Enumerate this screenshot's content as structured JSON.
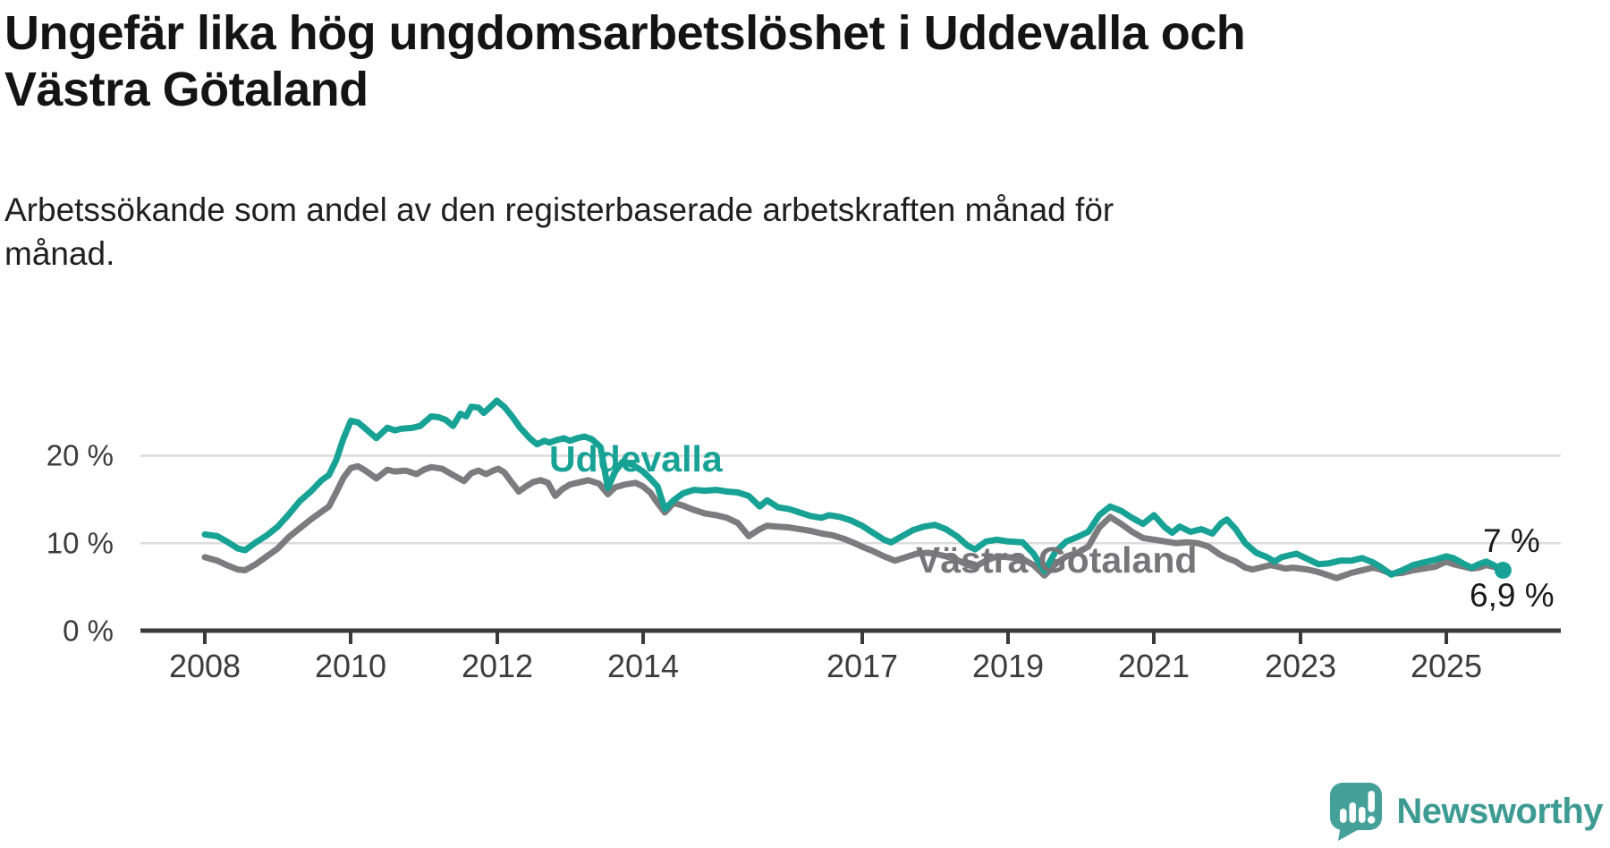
{
  "header": {
    "title_line1": "Ungefär lika hög ungdomsarbetslöshet i Uddevalla och",
    "title_line2": "Västra Götaland",
    "subtitle_line1": "Arbetssökande som andel av den registerbaserade arbetskraften månad för",
    "subtitle_line2": "månad."
  },
  "chart_data": {
    "type": "line",
    "title": "Ungefär lika hög ungdomsarbetslöshet i Uddevalla och Västra Götaland",
    "subtitle": "Arbetssökande som andel av den registerbaserade arbetskraften månad för månad.",
    "unit": "percent of registered labour force",
    "grid": "horizontal",
    "xlim": [
      2007.1,
      2026.6
    ],
    "ylim": [
      0,
      27.5
    ],
    "x_ticks": [
      "2008",
      "2010",
      "2012",
      "2014",
      "2017",
      "2019",
      "2021",
      "2023",
      "2025"
    ],
    "x_tick_years": [
      2008,
      2010,
      2012,
      2014,
      2017,
      2019,
      2021,
      2023,
      2025
    ],
    "y_ticks": [
      {
        "value": 0,
        "label": "0 %"
      },
      {
        "value": 10,
        "label": "10 %"
      },
      {
        "value": 20,
        "label": "20 %"
      }
    ],
    "series": [
      {
        "name": "Västra Götaland",
        "color": "#7c7c7e",
        "points": [
          [
            2008.0,
            8.4
          ],
          [
            2008.17,
            8.0
          ],
          [
            2008.3,
            7.5
          ],
          [
            2008.45,
            7.0
          ],
          [
            2008.55,
            6.9
          ],
          [
            2008.7,
            7.6
          ],
          [
            2008.85,
            8.5
          ],
          [
            2009.0,
            9.4
          ],
          [
            2009.15,
            10.7
          ],
          [
            2009.3,
            11.7
          ],
          [
            2009.45,
            12.7
          ],
          [
            2009.6,
            13.6
          ],
          [
            2009.7,
            14.2
          ],
          [
            2009.8,
            15.8
          ],
          [
            2009.9,
            17.5
          ],
          [
            2010.0,
            18.6
          ],
          [
            2010.1,
            18.8
          ],
          [
            2010.2,
            18.3
          ],
          [
            2010.35,
            17.4
          ],
          [
            2010.5,
            18.4
          ],
          [
            2010.6,
            18.2
          ],
          [
            2010.75,
            18.3
          ],
          [
            2010.9,
            17.9
          ],
          [
            2011.0,
            18.4
          ],
          [
            2011.1,
            18.7
          ],
          [
            2011.25,
            18.5
          ],
          [
            2011.4,
            17.8
          ],
          [
            2011.55,
            17.1
          ],
          [
            2011.65,
            18.0
          ],
          [
            2011.75,
            18.3
          ],
          [
            2011.85,
            17.9
          ],
          [
            2011.95,
            18.3
          ],
          [
            2012.02,
            18.5
          ],
          [
            2012.1,
            18.1
          ],
          [
            2012.2,
            17.0
          ],
          [
            2012.3,
            15.9
          ],
          [
            2012.4,
            16.5
          ],
          [
            2012.5,
            17.0
          ],
          [
            2012.6,
            17.2
          ],
          [
            2012.7,
            16.9
          ],
          [
            2012.8,
            15.4
          ],
          [
            2012.9,
            16.2
          ],
          [
            2013.0,
            16.7
          ],
          [
            2013.15,
            17.0
          ],
          [
            2013.25,
            17.2
          ],
          [
            2013.4,
            16.8
          ],
          [
            2013.52,
            15.6
          ],
          [
            2013.62,
            16.4
          ],
          [
            2013.75,
            16.7
          ],
          [
            2013.9,
            16.9
          ],
          [
            2014.0,
            16.5
          ],
          [
            2014.1,
            15.8
          ],
          [
            2014.2,
            14.6
          ],
          [
            2014.3,
            13.5
          ],
          [
            2014.42,
            14.6
          ],
          [
            2014.55,
            14.3
          ],
          [
            2014.7,
            13.8
          ],
          [
            2014.85,
            13.4
          ],
          [
            2015.0,
            13.2
          ],
          [
            2015.15,
            12.9
          ],
          [
            2015.3,
            12.3
          ],
          [
            2015.45,
            10.8
          ],
          [
            2015.6,
            11.6
          ],
          [
            2015.7,
            12.0
          ],
          [
            2015.85,
            11.9
          ],
          [
            2016.0,
            11.8
          ],
          [
            2016.15,
            11.6
          ],
          [
            2016.3,
            11.4
          ],
          [
            2016.45,
            11.1
          ],
          [
            2016.6,
            10.9
          ],
          [
            2016.75,
            10.5
          ],
          [
            2016.9,
            10.0
          ],
          [
            2017.0,
            9.6
          ],
          [
            2017.15,
            9.1
          ],
          [
            2017.3,
            8.5
          ],
          [
            2017.45,
            8.0
          ],
          [
            2017.6,
            8.4
          ],
          [
            2017.75,
            8.8
          ],
          [
            2017.9,
            8.9
          ],
          [
            2018.0,
            8.8
          ],
          [
            2018.15,
            8.5
          ],
          [
            2018.3,
            8.1
          ],
          [
            2018.45,
            7.5
          ],
          [
            2018.55,
            7.3
          ],
          [
            2018.7,
            8.0
          ],
          [
            2018.85,
            8.5
          ],
          [
            2019.0,
            8.4
          ],
          [
            2019.2,
            8.2
          ],
          [
            2019.35,
            7.5
          ],
          [
            2019.5,
            6.3
          ],
          [
            2019.65,
            7.6
          ],
          [
            2019.8,
            8.5
          ],
          [
            2019.95,
            8.9
          ],
          [
            2020.1,
            9.6
          ],
          [
            2020.25,
            11.8
          ],
          [
            2020.4,
            13.0
          ],
          [
            2020.55,
            12.2
          ],
          [
            2020.7,
            11.3
          ],
          [
            2020.85,
            10.6
          ],
          [
            2021.0,
            10.4
          ],
          [
            2021.15,
            10.2
          ],
          [
            2021.3,
            10.0
          ],
          [
            2021.45,
            10.1
          ],
          [
            2021.6,
            10.0
          ],
          [
            2021.75,
            9.6
          ],
          [
            2021.9,
            8.7
          ],
          [
            2022.0,
            8.3
          ],
          [
            2022.12,
            7.9
          ],
          [
            2022.25,
            7.2
          ],
          [
            2022.35,
            7.0
          ],
          [
            2022.5,
            7.3
          ],
          [
            2022.6,
            7.5
          ],
          [
            2022.7,
            7.3
          ],
          [
            2022.8,
            7.1
          ],
          [
            2022.9,
            7.2
          ],
          [
            2023.0,
            7.1
          ],
          [
            2023.1,
            7.0
          ],
          [
            2023.25,
            6.7
          ],
          [
            2023.4,
            6.3
          ],
          [
            2023.5,
            6.0
          ],
          [
            2023.6,
            6.3
          ],
          [
            2023.7,
            6.6
          ],
          [
            2023.85,
            6.9
          ],
          [
            2024.0,
            7.2
          ],
          [
            2024.1,
            7.0
          ],
          [
            2024.25,
            6.5
          ],
          [
            2024.4,
            6.6
          ],
          [
            2024.55,
            6.9
          ],
          [
            2024.7,
            7.1
          ],
          [
            2024.85,
            7.3
          ],
          [
            2025.0,
            7.9
          ],
          [
            2025.1,
            7.6
          ],
          [
            2025.25,
            7.3
          ],
          [
            2025.35,
            7.1
          ],
          [
            2025.45,
            7.2
          ],
          [
            2025.55,
            7.5
          ],
          [
            2025.65,
            7.3
          ],
          [
            2025.78,
            7.0
          ]
        ]
      },
      {
        "name": "Uddevalla",
        "color": "#17a295",
        "points": [
          [
            2008.0,
            11.0
          ],
          [
            2008.17,
            10.8
          ],
          [
            2008.3,
            10.2
          ],
          [
            2008.45,
            9.4
          ],
          [
            2008.55,
            9.2
          ],
          [
            2008.7,
            10.1
          ],
          [
            2008.85,
            10.9
          ],
          [
            2009.0,
            11.9
          ],
          [
            2009.15,
            13.3
          ],
          [
            2009.3,
            14.8
          ],
          [
            2009.45,
            15.9
          ],
          [
            2009.6,
            17.2
          ],
          [
            2009.7,
            17.8
          ],
          [
            2009.8,
            19.5
          ],
          [
            2009.9,
            22.0
          ],
          [
            2010.0,
            24.0
          ],
          [
            2010.1,
            23.8
          ],
          [
            2010.2,
            23.1
          ],
          [
            2010.35,
            22.0
          ],
          [
            2010.5,
            23.2
          ],
          [
            2010.6,
            22.9
          ],
          [
            2010.7,
            23.1
          ],
          [
            2010.85,
            23.2
          ],
          [
            2010.95,
            23.4
          ],
          [
            2011.1,
            24.5
          ],
          [
            2011.2,
            24.4
          ],
          [
            2011.3,
            24.1
          ],
          [
            2011.4,
            23.4
          ],
          [
            2011.5,
            24.8
          ],
          [
            2011.58,
            24.5
          ],
          [
            2011.65,
            25.6
          ],
          [
            2011.75,
            25.5
          ],
          [
            2011.82,
            24.9
          ],
          [
            2011.9,
            25.5
          ],
          [
            2012.0,
            26.3
          ],
          [
            2012.1,
            25.6
          ],
          [
            2012.2,
            24.6
          ],
          [
            2012.32,
            23.2
          ],
          [
            2012.45,
            22.0
          ],
          [
            2012.55,
            21.3
          ],
          [
            2012.65,
            21.7
          ],
          [
            2012.72,
            21.5
          ],
          [
            2012.82,
            21.8
          ],
          [
            2012.92,
            22.0
          ],
          [
            2013.0,
            21.7
          ],
          [
            2013.1,
            22.0
          ],
          [
            2013.2,
            22.2
          ],
          [
            2013.3,
            21.9
          ],
          [
            2013.42,
            21.0
          ],
          [
            2013.52,
            16.3
          ],
          [
            2013.62,
            18.2
          ],
          [
            2013.72,
            19.3
          ],
          [
            2013.85,
            19.0
          ],
          [
            2014.0,
            18.2
          ],
          [
            2014.1,
            17.4
          ],
          [
            2014.2,
            16.5
          ],
          [
            2014.3,
            13.9
          ],
          [
            2014.42,
            14.9
          ],
          [
            2014.55,
            15.7
          ],
          [
            2014.7,
            16.1
          ],
          [
            2014.85,
            16.0
          ],
          [
            2015.0,
            16.1
          ],
          [
            2015.15,
            15.9
          ],
          [
            2015.3,
            15.8
          ],
          [
            2015.45,
            15.4
          ],
          [
            2015.6,
            14.2
          ],
          [
            2015.7,
            14.9
          ],
          [
            2015.85,
            14.1
          ],
          [
            2016.0,
            13.9
          ],
          [
            2016.15,
            13.5
          ],
          [
            2016.3,
            13.1
          ],
          [
            2016.45,
            12.9
          ],
          [
            2016.55,
            13.2
          ],
          [
            2016.7,
            13.0
          ],
          [
            2016.85,
            12.6
          ],
          [
            2017.0,
            12.0
          ],
          [
            2017.15,
            11.2
          ],
          [
            2017.3,
            10.4
          ],
          [
            2017.4,
            10.1
          ],
          [
            2017.55,
            10.8
          ],
          [
            2017.7,
            11.5
          ],
          [
            2017.85,
            11.9
          ],
          [
            2018.0,
            12.1
          ],
          [
            2018.15,
            11.6
          ],
          [
            2018.3,
            10.8
          ],
          [
            2018.45,
            9.7
          ],
          [
            2018.55,
            9.3
          ],
          [
            2018.7,
            10.2
          ],
          [
            2018.85,
            10.4
          ],
          [
            2019.0,
            10.2
          ],
          [
            2019.2,
            10.1
          ],
          [
            2019.35,
            8.8
          ],
          [
            2019.5,
            6.8
          ],
          [
            2019.65,
            9.0
          ],
          [
            2019.8,
            10.2
          ],
          [
            2019.95,
            10.7
          ],
          [
            2020.1,
            11.3
          ],
          [
            2020.25,
            13.2
          ],
          [
            2020.4,
            14.2
          ],
          [
            2020.55,
            13.7
          ],
          [
            2020.7,
            12.9
          ],
          [
            2020.85,
            12.2
          ],
          [
            2021.0,
            13.2
          ],
          [
            2021.15,
            11.8
          ],
          [
            2021.25,
            11.2
          ],
          [
            2021.35,
            11.9
          ],
          [
            2021.5,
            11.3
          ],
          [
            2021.65,
            11.6
          ],
          [
            2021.8,
            11.1
          ],
          [
            2021.92,
            12.3
          ],
          [
            2022.0,
            12.7
          ],
          [
            2022.12,
            11.6
          ],
          [
            2022.25,
            10.0
          ],
          [
            2022.4,
            8.9
          ],
          [
            2022.55,
            8.4
          ],
          [
            2022.65,
            7.9
          ],
          [
            2022.75,
            8.4
          ],
          [
            2022.85,
            8.6
          ],
          [
            2022.95,
            8.8
          ],
          [
            2023.1,
            8.2
          ],
          [
            2023.25,
            7.6
          ],
          [
            2023.4,
            7.7
          ],
          [
            2023.55,
            8.0
          ],
          [
            2023.7,
            8.0
          ],
          [
            2023.85,
            8.3
          ],
          [
            2024.0,
            7.8
          ],
          [
            2024.1,
            7.3
          ],
          [
            2024.25,
            6.4
          ],
          [
            2024.4,
            6.9
          ],
          [
            2024.55,
            7.5
          ],
          [
            2024.7,
            7.8
          ],
          [
            2024.85,
            8.1
          ],
          [
            2025.0,
            8.5
          ],
          [
            2025.1,
            8.3
          ],
          [
            2025.25,
            7.6
          ],
          [
            2025.35,
            7.2
          ],
          [
            2025.45,
            7.6
          ],
          [
            2025.55,
            7.9
          ],
          [
            2025.65,
            7.5
          ],
          [
            2025.78,
            6.9
          ]
        ]
      }
    ],
    "series_labels": [
      {
        "text": "Uddevalla",
        "color": "#17a295"
      },
      {
        "text": "Västra Götaland",
        "color": "#767678"
      }
    ],
    "end_labels": [
      {
        "text": "7 %",
        "series": "Västra Götaland"
      },
      {
        "text": "6,9 %",
        "series": "Uddevalla"
      }
    ],
    "end_dot": {
      "series": "Uddevalla",
      "x": 2025.78,
      "value": 6.9
    }
  },
  "branding": {
    "logo_text": "Newsworthy",
    "logo_color": "#3d9b93",
    "logo_icon": "speech-bubble-bar-chart-exclamation"
  },
  "colors": {
    "accent_teal": "#17a295",
    "series_gray": "#7c7c7e",
    "gridline": "#dcdcdc",
    "axis": "#3a3a3a",
    "tick_label": "#3c3c3c",
    "end_label": "#1a1a1a",
    "background": "#ffffff"
  }
}
